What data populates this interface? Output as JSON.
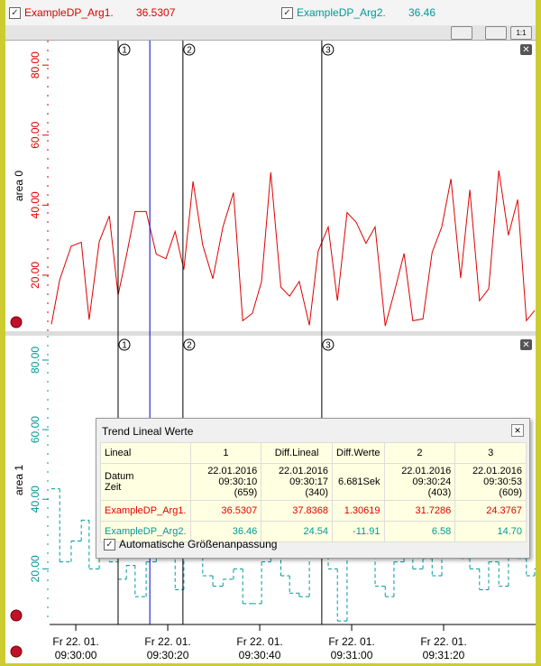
{
  "legend": [
    {
      "name": "ExampleDP_Arg1.",
      "value": "36.5307",
      "color": "#e00000"
    },
    {
      "name": "ExampleDP_Arg2.",
      "value": "36.46",
      "color": "#009999"
    }
  ],
  "chart": {
    "xlim": [
      -5.7,
      100
    ],
    "xticks": [
      {
        "value": 0,
        "label": "Fr 22. 01.\n09:30:00"
      },
      {
        "value": 20,
        "label": "Fr 22. 01.\n09:30:20"
      },
      {
        "value": 40,
        "label": "Fr 22. 01.\n09:30:40"
      },
      {
        "value": 60,
        "label": "Fr 22. 01.\n09:31:00"
      },
      {
        "value": 80,
        "label": "Fr 22. 01.\n09:31:20"
      }
    ],
    "x": [
      -5.3,
      -3.5,
      -1.0,
      1.2,
      2.9,
      5.1,
      7.3,
      9.2,
      11.0,
      12.9,
      15.3,
      17.5,
      19.6,
      21.6,
      23.5,
      25.5,
      27.6,
      29.8,
      32.0,
      34.3,
      36.3,
      38.4,
      40.4,
      42.4,
      44.6,
      46.5,
      48.6,
      50.8,
      52.7,
      54.9,
      56.9,
      59.0,
      61.0,
      63.1,
      65.1,
      67.3,
      69.2,
      71.4,
      73.3,
      75.5,
      77.5,
      79.6,
      81.6,
      83.7,
      85.7,
      87.8,
      89.8,
      92.0,
      94.1,
      96.1,
      98.0,
      99.8
    ],
    "rulers": [
      {
        "label": "1",
        "x": 9.2
      },
      {
        "label": "2",
        "x": 23.3
      },
      {
        "label": "3",
        "x": 53.5
      }
    ],
    "cursor_x": 16.1,
    "areas": [
      {
        "label": "area 0",
        "type": "line",
        "color": "#e00000",
        "ylim": [
          4,
          87
        ],
        "yticks": [
          {
            "value": 20,
            "label": "20.00"
          },
          {
            "value": 40,
            "label": "40.00"
          },
          {
            "value": 60,
            "label": "60.00"
          },
          {
            "value": 80,
            "label": "80.00"
          }
        ],
        "values": [
          6.0,
          18.7,
          28.3,
          29.4,
          7.3,
          29.6,
          36.9,
          14.3,
          25.5,
          38.2,
          38.2,
          26.0,
          24.7,
          32.5,
          21.6,
          46.8,
          28.6,
          19.0,
          33.8,
          43.6,
          7.0,
          9.1,
          18.2,
          49.4,
          16.6,
          14.0,
          18.2,
          5.7,
          26.8,
          33.8,
          12.7,
          37.9,
          35.1,
          29.1,
          33.8,
          5.5,
          14.8,
          26.2,
          7.0,
          7.5,
          26.5,
          33.8,
          47.5,
          19.2,
          44.4,
          12.7,
          16.1,
          49.9,
          31.4,
          41.6,
          7.0,
          9.9
        ]
      },
      {
        "label": "area 1",
        "type": "step",
        "color": "#009999",
        "ylim": [
          4,
          87
        ],
        "yticks": [
          {
            "value": 20,
            "label": "20.00"
          },
          {
            "value": 40,
            "label": "40.00"
          },
          {
            "value": 60,
            "label": "60.00"
          },
          {
            "value": 80,
            "label": "80.00"
          }
        ],
        "values": [
          43,
          22,
          28,
          34,
          20,
          35,
          22,
          17,
          21,
          12,
          22,
          25,
          30,
          14,
          24,
          27,
          18,
          15,
          17,
          20,
          10,
          10,
          22,
          28,
          18,
          13,
          12,
          26,
          40,
          20,
          5,
          24,
          28,
          33,
          15,
          12,
          22,
          30,
          20,
          23,
          18,
          25,
          30,
          23,
          20,
          14,
          22,
          15,
          26,
          23,
          18,
          20
        ]
      }
    ]
  },
  "popup": {
    "title": "Trend Lineal Werte",
    "rows": [
      [
        "Lineal",
        "1",
        "Diff.Lineal",
        "Diff.Werte",
        "2",
        "3"
      ],
      [
        [
          "Datum",
          "Zeit"
        ],
        [
          "22.01.2016",
          "09:30:10 (659)"
        ],
        [
          "22.01.2016",
          "09:30:17 (340)"
        ],
        "6.681Sek",
        [
          "22.01.2016",
          "09:30:24 (403)"
        ],
        [
          "22.01.2016",
          "09:30:53 (609)"
        ]
      ],
      [
        "ExampleDP_Arg1.",
        "36.5307",
        "37.8368",
        "1.30619",
        "31.7286",
        "24.3767"
      ],
      [
        "ExampleDP_Arg2.",
        "36.46",
        "24.54",
        "-11.91",
        "6.58",
        "14.70"
      ]
    ],
    "checkbox": "Automatische Größenanpassung"
  }
}
